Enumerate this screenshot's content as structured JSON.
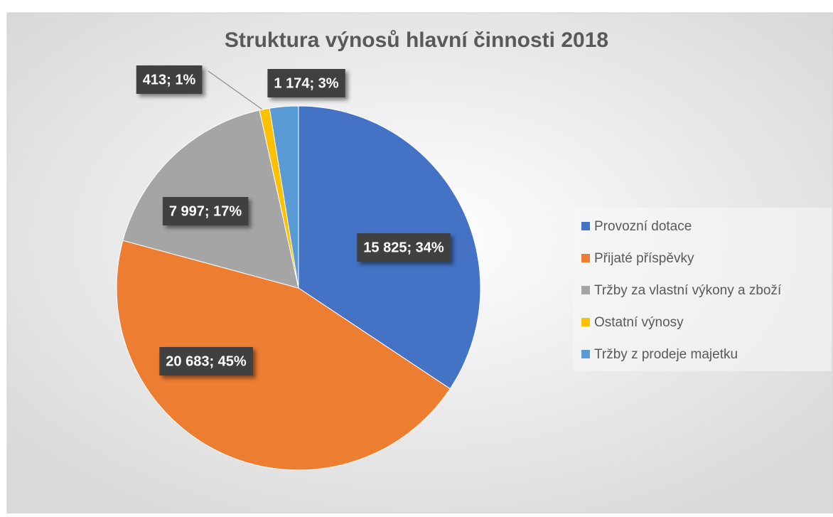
{
  "chart_data": {
    "type": "pie",
    "title": "Struktura výnosů hlavní činnosti 2018",
    "categories": [
      "Provozní dotace",
      "Přijaté příspěvky",
      "Tržby za vlastní výkony a zboží",
      "Ostatní výnosy",
      "Tržby z prodeje majetku"
    ],
    "values": [
      15825,
      20683,
      7997,
      413,
      1174
    ],
    "value_labels": [
      "15 825; 34%",
      "20 683; 45%",
      "7 997; 17%",
      "413; 1%",
      "1 174; 3%"
    ],
    "colors": [
      "#4472c4",
      "#ed7d31",
      "#a5a5a5",
      "#ffc000",
      "#5b9bd5"
    ],
    "legend": "right"
  }
}
